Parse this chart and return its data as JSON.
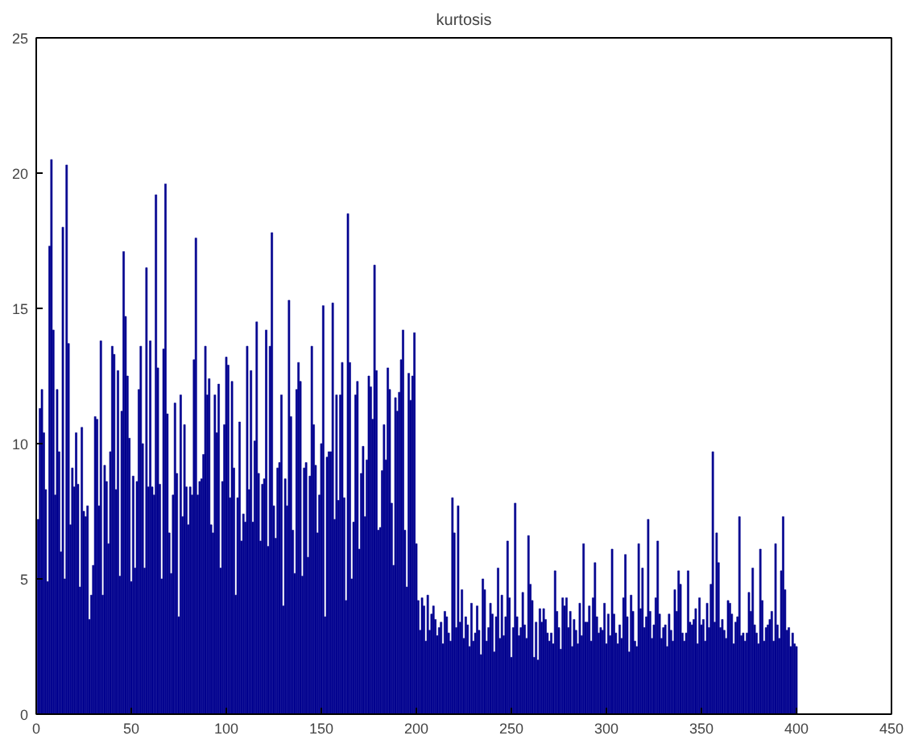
{
  "chart_data": {
    "type": "bar",
    "title": "kurtosis",
    "color": "#00008f",
    "x": [
      1,
      2,
      3,
      4,
      5,
      6,
      7,
      8,
      9,
      10,
      11,
      12,
      13,
      14,
      15,
      16,
      17,
      18,
      19,
      20,
      21,
      22,
      23,
      24,
      25,
      26,
      27,
      28,
      29,
      30,
      31,
      32,
      33,
      34,
      35,
      36,
      37,
      38,
      39,
      40,
      41,
      42,
      43,
      44,
      45,
      46,
      47,
      48,
      49,
      50,
      51,
      52,
      53,
      54,
      55,
      56,
      57,
      58,
      59,
      60,
      61,
      62,
      63,
      64,
      65,
      66,
      67,
      68,
      69,
      70,
      71,
      72,
      73,
      74,
      75,
      76,
      77,
      78,
      79,
      80,
      81,
      82,
      83,
      84,
      85,
      86,
      87,
      88,
      89,
      90,
      91,
      92,
      93,
      94,
      95,
      96,
      97,
      98,
      99,
      100,
      101,
      102,
      103,
      104,
      105,
      106,
      107,
      108,
      109,
      110,
      111,
      112,
      113,
      114,
      115,
      116,
      117,
      118,
      119,
      120,
      121,
      122,
      123,
      124,
      125,
      126,
      127,
      128,
      129,
      130,
      131,
      132,
      133,
      134,
      135,
      136,
      137,
      138,
      139,
      140,
      141,
      142,
      143,
      144,
      145,
      146,
      147,
      148,
      149,
      150,
      151,
      152,
      153,
      154,
      155,
      156,
      157,
      158,
      159,
      160,
      161,
      162,
      163,
      164,
      165,
      166,
      167,
      168,
      169,
      170,
      171,
      172,
      173,
      174,
      175,
      176,
      177,
      178,
      179,
      180,
      181,
      182,
      183,
      184,
      185,
      186,
      187,
      188,
      189,
      190,
      191,
      192,
      193,
      194,
      195,
      196,
      197,
      198,
      199,
      200,
      201,
      202,
      203,
      204,
      205,
      206,
      207,
      208,
      209,
      210,
      211,
      212,
      213,
      214,
      215,
      216,
      217,
      218,
      219,
      220,
      221,
      222,
      223,
      224,
      225,
      226,
      227,
      228,
      229,
      230,
      231,
      232,
      233,
      234,
      235,
      236,
      237,
      238,
      239,
      240,
      241,
      242,
      243,
      244,
      245,
      246,
      247,
      248,
      249,
      250,
      251,
      252,
      253,
      254,
      255,
      256,
      257,
      258,
      259,
      260,
      261,
      262,
      263,
      264,
      265,
      266,
      267,
      268,
      269,
      270,
      271,
      272,
      273,
      274,
      275,
      276,
      277,
      278,
      279,
      280,
      281,
      282,
      283,
      284,
      285,
      286,
      287,
      288,
      289,
      290,
      291,
      292,
      293,
      294,
      295,
      296,
      297,
      298,
      299,
      300,
      301,
      302,
      303,
      304,
      305,
      306,
      307,
      308,
      309,
      310,
      311,
      312,
      313,
      314,
      315,
      316,
      317,
      318,
      319,
      320,
      321,
      322,
      323,
      324,
      325,
      326,
      327,
      328,
      329,
      330,
      331,
      332,
      333,
      334,
      335,
      336,
      337,
      338,
      339,
      340,
      341,
      342,
      343,
      344,
      345,
      346,
      347,
      348,
      349,
      350,
      351,
      352,
      353,
      354,
      355,
      356,
      357,
      358,
      359,
      360,
      361,
      362,
      363,
      364,
      365,
      366,
      367,
      368,
      369,
      370,
      371,
      372,
      373,
      374,
      375,
      376,
      377,
      378,
      379,
      380,
      381,
      382,
      383,
      384,
      385,
      386,
      387,
      388,
      389,
      390,
      391,
      392,
      393,
      394,
      395,
      396,
      397,
      398,
      399,
      400
    ],
    "values": [
      7.2,
      11.3,
      12.0,
      10.4,
      8.3,
      4.9,
      17.3,
      20.5,
      14.2,
      8.1,
      12.0,
      9.7,
      6.0,
      18.0,
      5.0,
      20.3,
      13.7,
      7.0,
      9.1,
      8.4,
      10.4,
      8.5,
      4.7,
      10.6,
      7.5,
      7.3,
      7.7,
      3.5,
      4.4,
      5.5,
      11.0,
      10.9,
      7.7,
      13.8,
      4.4,
      9.2,
      8.6,
      6.3,
      9.7,
      13.6,
      13.3,
      8.3,
      12.7,
      5.1,
      11.2,
      17.1,
      14.7,
      12.5,
      10.2,
      4.9,
      8.8,
      5.4,
      8.6,
      12.0,
      13.6,
      10.0,
      5.4,
      16.5,
      8.4,
      13.8,
      8.4,
      8.1,
      19.2,
      12.8,
      8.5,
      5.0,
      13.5,
      19.6,
      11.1,
      6.7,
      5.2,
      8.1,
      11.5,
      8.9,
      3.6,
      11.8,
      7.3,
      10.7,
      8.4,
      7.0,
      8.4,
      8.1,
      13.1,
      17.6,
      8.1,
      8.6,
      8.7,
      9.6,
      13.6,
      11.8,
      12.4,
      7.0,
      6.7,
      11.8,
      10.4,
      12.2,
      5.4,
      8.6,
      10.7,
      13.2,
      12.9,
      8.0,
      12.3,
      9.1,
      4.4,
      8.0,
      10.8,
      6.4,
      7.4,
      7.1,
      13.6,
      8.3,
      12.7,
      7.1,
      10.1,
      14.5,
      8.9,
      6.4,
      8.5,
      8.7,
      14.2,
      6.2,
      13.6,
      17.8,
      7.7,
      6.5,
      9.1,
      9.3,
      11.8,
      4.0,
      8.7,
      7.7,
      15.3,
      11.0,
      6.8,
      5.2,
      12.0,
      13.0,
      12.3,
      5.1,
      9.1,
      9.3,
      5.8,
      8.8,
      13.6,
      10.7,
      9.2,
      6.7,
      8.1,
      10.0,
      15.1,
      3.6,
      9.5,
      9.7,
      9.7,
      15.2,
      7.2,
      11.8,
      7.9,
      11.8,
      13.0,
      8.0,
      4.2,
      18.5,
      13.0,
      5.0,
      7.1,
      11.8,
      12.3,
      6.1,
      8.9,
      9.9,
      7.3,
      9.4,
      12.5,
      12.1,
      10.9,
      16.6,
      12.7,
      6.8,
      6.9,
      9.0,
      10.7,
      9.4,
      12.8,
      12.0,
      7.8,
      5.5,
      11.7,
      11.2,
      11.9,
      13.1,
      14.2,
      6.8,
      4.7,
      12.6,
      11.6,
      12.5,
      14.1,
      6.3,
      4.2,
      3.1,
      4.3,
      4.0,
      2.7,
      4.4,
      3.1,
      3.7,
      4.0,
      3.5,
      2.9,
      3.2,
      3.4,
      2.6,
      3.8,
      3.6,
      3.0,
      2.7,
      8.0,
      6.7,
      3.2,
      7.7,
      3.4,
      4.6,
      2.8,
      3.6,
      3.3,
      2.5,
      4.1,
      2.7,
      3.0,
      4.0,
      3.1,
      2.2,
      5.0,
      4.6,
      2.7,
      3.2,
      4.1,
      3.7,
      2.3,
      3.6,
      5.4,
      2.8,
      4.4,
      2.9,
      3.6,
      6.4,
      4.3,
      2.1,
      3.2,
      7.8,
      3.6,
      2.9,
      3.2,
      4.5,
      3.3,
      2.8,
      6.6,
      4.8,
      4.2,
      2.1,
      3.4,
      2.0,
      3.9,
      3.4,
      3.9,
      3.5,
      3.0,
      2.7,
      3.0,
      2.6,
      5.3,
      3.8,
      3.2,
      2.4,
      4.3,
      4.0,
      4.3,
      3.2,
      3.8,
      2.5,
      3.5,
      3.1,
      2.6,
      4.1,
      2.9,
      6.3,
      3.4,
      3.4,
      4.0,
      2.7,
      4.3,
      5.6,
      3.6,
      3.0,
      3.2,
      3.1,
      4.1,
      2.6,
      3.7,
      2.9,
      6.1,
      3.7,
      3.0,
      2.6,
      3.3,
      2.8,
      4.3,
      5.9,
      3.6,
      2.3,
      4.4,
      3.8,
      2.7,
      2.5,
      6.3,
      3.9,
      5.4,
      3.2,
      3.6,
      7.2,
      3.8,
      2.8,
      3.3,
      4.3,
      6.4,
      3.7,
      2.8,
      3.2,
      3.3,
      2.5,
      3.7,
      3.1,
      2.7,
      4.6,
      3.8,
      5.3,
      4.8,
      3.0,
      2.7,
      3.0,
      5.3,
      3.4,
      3.3,
      3.5,
      3.9,
      2.6,
      4.3,
      3.3,
      3.5,
      2.7,
      4.1,
      3.2,
      4.8,
      9.7,
      3.4,
      6.7,
      5.6,
      3.2,
      3.5,
      3.1,
      2.8,
      4.2,
      4.1,
      3.7,
      2.6,
      3.4,
      3.6,
      7.3,
      2.9,
      3.0,
      2.7,
      3.0,
      4.5,
      3.8,
      5.4,
      3.3,
      3.0,
      2.6,
      6.1,
      4.2,
      2.7,
      3.2,
      3.3,
      3.5,
      3.8,
      2.7,
      6.3,
      3.3,
      2.8,
      5.3,
      7.3,
      4.6,
      3.1,
      3.2,
      2.5,
      3.0,
      2.6,
      2.5
    ],
    "xlim": [
      0,
      450
    ],
    "ylim": [
      0,
      25
    ],
    "xticks": [
      0,
      50,
      100,
      150,
      200,
      250,
      300,
      350,
      400,
      450
    ],
    "yticks": [
      0,
      5,
      10,
      15,
      20,
      25
    ],
    "grid": false
  }
}
